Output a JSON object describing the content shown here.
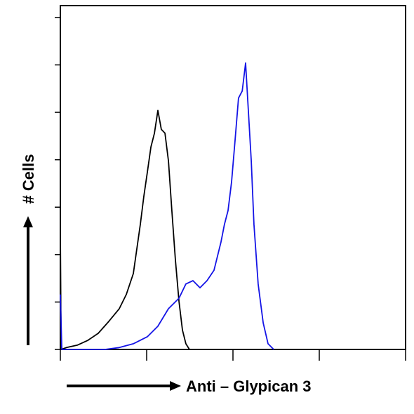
{
  "chart_data": {
    "type": "line",
    "ylabel": "# Cells",
    "xlabel": "Anti – Glypican 3",
    "xscale": "log",
    "xlim": [
      1,
      10000
    ],
    "xticks": [
      1,
      10,
      100,
      1000,
      10000
    ],
    "ylim": [
      0,
      7.25
    ],
    "yticks": [
      0,
      1,
      2,
      3,
      4,
      5,
      6,
      7
    ],
    "series": [
      {
        "color": "#000000",
        "x": [
          1,
          1.02,
          1.18,
          1.57,
          2.07,
          2.75,
          3.64,
          4.82,
          5.81,
          7.01,
          7.69,
          8.45,
          9.27,
          10.2,
          11.2,
          12.3,
          13.5,
          14.8,
          16.3,
          17.9,
          19.6,
          21.5,
          23.7,
          26.0,
          28.5,
          31.3
        ],
        "values": [
          2.5,
          0,
          0.04,
          0.09,
          0.19,
          0.34,
          0.59,
          0.86,
          1.16,
          1.6,
          2.12,
          2.64,
          3.23,
          3.75,
          4.27,
          4.56,
          5.04,
          4.64,
          4.56,
          3.97,
          2.93,
          1.9,
          1.01,
          0.41,
          0.12,
          0
        ]
      },
      {
        "color": "#1414e6",
        "x": [
          1,
          1.04,
          3.31,
          4.82,
          7.01,
          10.2,
          13.5,
          17.9,
          23.7,
          28.5,
          34.4,
          41.5,
          50,
          60.3,
          72.7,
          79.8,
          87.7,
          96.3,
          105.7,
          116,
          128,
          140,
          148,
          163,
          175,
          196,
          224,
          255,
          297
        ],
        "values": [
          1.16,
          0,
          0,
          0.04,
          0.12,
          0.27,
          0.49,
          0.86,
          1.08,
          1.38,
          1.45,
          1.3,
          1.45,
          1.67,
          2.27,
          2.64,
          2.93,
          3.53,
          4.41,
          5.3,
          5.45,
          6.04,
          5.3,
          3.97,
          2.64,
          1.38,
          0.56,
          0.12,
          0
        ]
      }
    ]
  }
}
